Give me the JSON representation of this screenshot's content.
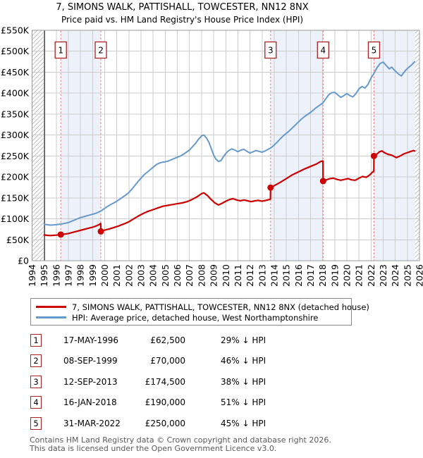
{
  "title": "7, SIMONS WALK, PATTISHALL, TOWCESTER, NN12 8NX",
  "subtitle": "Price paid vs. HM Land Registry's House Price Index (HPI)",
  "legend": [
    {
      "label": "7, SIMONS WALK, PATTISHALL, TOWCESTER, NN12 8NX (detached house)",
      "color": "#cc0000"
    },
    {
      "label": "HPI: Average price, detached house, West Northamptonshire",
      "color": "#6699cc"
    }
  ],
  "sales": [
    {
      "num": "1",
      "date": "17-MAY-1996",
      "price": "£62,500",
      "vs_hpi": "29% ↓ HPI"
    },
    {
      "num": "2",
      "date": "08-SEP-1999",
      "price": "£70,000",
      "vs_hpi": "46% ↓ HPI"
    },
    {
      "num": "3",
      "date": "12-SEP-2013",
      "price": "£174,500",
      "vs_hpi": "38% ↓ HPI"
    },
    {
      "num": "4",
      "date": "16-JAN-2018",
      "price": "£190,000",
      "vs_hpi": "51% ↓ HPI"
    },
    {
      "num": "5",
      "date": "31-MAR-2022",
      "price": "£250,000",
      "vs_hpi": "45% ↓ HPI"
    }
  ],
  "footer_line1": "Contains HM Land Registry data © Crown copyright and database right 2026.",
  "footer_line2": "This data is licensed under the Open Government Licence v3.0.",
  "colors": {
    "price": "#cc0000",
    "hpi": "#6699cc",
    "dashed": "#ee7777",
    "flag_border": "#aa2222",
    "band": "#edf2fa",
    "grid": "#cccccc",
    "frame": "#999999",
    "hatch": "#bbbbbb",
    "data_start": "#555555"
  },
  "chart_data": {
    "type": "line",
    "title": "Price paid vs. HM Land Registry's House Price Index (HPI)",
    "xlim": [
      1994,
      2026
    ],
    "ylim_k": [
      0,
      550
    ],
    "x_ticks": [
      1994,
      1995,
      1996,
      1997,
      1998,
      1999,
      2000,
      2001,
      2002,
      2003,
      2004,
      2005,
      2006,
      2007,
      2008,
      2009,
      2010,
      2011,
      2012,
      2013,
      2014,
      2015,
      2016,
      2017,
      2018,
      2019,
      2020,
      2021,
      2022,
      2023,
      2024,
      2025,
      2026
    ],
    "y_ticks": [
      [
        0,
        "£0"
      ],
      [
        50,
        "£50K"
      ],
      [
        100,
        "£100K"
      ],
      [
        150,
        "£150K"
      ],
      [
        200,
        "£200K"
      ],
      [
        250,
        "£250K"
      ],
      [
        300,
        "£300K"
      ],
      [
        350,
        "£350K"
      ],
      [
        400,
        "£400K"
      ],
      [
        450,
        "£450K"
      ],
      [
        500,
        "£500K"
      ],
      [
        550,
        "£550K"
      ]
    ],
    "shaded_bands": [
      [
        1996.37,
        1999.68
      ],
      [
        2013.7,
        2018.04
      ],
      [
        2022.24,
        2025.63
      ]
    ],
    "hatch_bands": [
      [
        1994,
        1995.03
      ],
      [
        2025.63,
        2026
      ]
    ],
    "data_start_line": 1995.03,
    "sale_markers": [
      {
        "num": "1",
        "year": 1996.37,
        "price_k": 62.5
      },
      {
        "num": "2",
        "year": 1999.68,
        "price_k": 70
      },
      {
        "num": "3",
        "year": 2013.7,
        "price_k": 174.5
      },
      {
        "num": "4",
        "year": 2018.04,
        "price_k": 190
      },
      {
        "num": "5",
        "year": 2022.24,
        "price_k": 250
      }
    ],
    "series": [
      {
        "name": "HPI: Average price, detached house, West Northamptonshire",
        "points": [
          [
            1995.0,
            87
          ],
          [
            1995.25,
            86
          ],
          [
            1995.5,
            85
          ],
          [
            1995.75,
            85.5
          ],
          [
            1996.0,
            86
          ],
          [
            1996.25,
            87
          ],
          [
            1996.5,
            88
          ],
          [
            1996.75,
            89.5
          ],
          [
            1997.0,
            91
          ],
          [
            1997.25,
            94
          ],
          [
            1997.5,
            97
          ],
          [
            1997.75,
            100
          ],
          [
            1998.0,
            103
          ],
          [
            1998.25,
            105
          ],
          [
            1998.5,
            107
          ],
          [
            1998.75,
            109
          ],
          [
            1999.0,
            111
          ],
          [
            1999.25,
            113
          ],
          [
            1999.5,
            116
          ],
          [
            1999.75,
            120
          ],
          [
            2000.0,
            125
          ],
          [
            2000.25,
            130
          ],
          [
            2000.5,
            134
          ],
          [
            2000.75,
            138
          ],
          [
            2001.0,
            142
          ],
          [
            2001.25,
            147
          ],
          [
            2001.5,
            152
          ],
          [
            2001.75,
            157
          ],
          [
            2002.0,
            163
          ],
          [
            2002.25,
            171
          ],
          [
            2002.5,
            180
          ],
          [
            2002.75,
            189
          ],
          [
            2003.0,
            197
          ],
          [
            2003.25,
            205
          ],
          [
            2003.5,
            211
          ],
          [
            2003.75,
            217
          ],
          [
            2004.0,
            223
          ],
          [
            2004.25,
            229
          ],
          [
            2004.5,
            233
          ],
          [
            2004.75,
            235
          ],
          [
            2005.0,
            236
          ],
          [
            2005.25,
            238
          ],
          [
            2005.5,
            241
          ],
          [
            2005.75,
            244
          ],
          [
            2006.0,
            247
          ],
          [
            2006.25,
            250
          ],
          [
            2006.5,
            254
          ],
          [
            2006.75,
            259
          ],
          [
            2007.0,
            264
          ],
          [
            2007.25,
            272
          ],
          [
            2007.5,
            280
          ],
          [
            2007.75,
            290
          ],
          [
            2008.0,
            298
          ],
          [
            2008.2,
            300
          ],
          [
            2008.4,
            293
          ],
          [
            2008.6,
            283
          ],
          [
            2008.8,
            268
          ],
          [
            2009.0,
            252
          ],
          [
            2009.2,
            242
          ],
          [
            2009.4,
            237
          ],
          [
            2009.6,
            239
          ],
          [
            2009.8,
            248
          ],
          [
            2010.0,
            256
          ],
          [
            2010.25,
            263
          ],
          [
            2010.5,
            267
          ],
          [
            2010.75,
            264
          ],
          [
            2011.0,
            260
          ],
          [
            2011.25,
            264
          ],
          [
            2011.5,
            266
          ],
          [
            2011.75,
            261
          ],
          [
            2012.0,
            257
          ],
          [
            2012.25,
            260
          ],
          [
            2012.5,
            263
          ],
          [
            2012.75,
            261
          ],
          [
            2013.0,
            259
          ],
          [
            2013.25,
            262
          ],
          [
            2013.5,
            266
          ],
          [
            2013.75,
            270
          ],
          [
            2014.0,
            276
          ],
          [
            2014.25,
            283
          ],
          [
            2014.5,
            291
          ],
          [
            2014.75,
            298
          ],
          [
            2015.0,
            304
          ],
          [
            2015.25,
            310
          ],
          [
            2015.5,
            317
          ],
          [
            2015.75,
            324
          ],
          [
            2016.0,
            331
          ],
          [
            2016.25,
            338
          ],
          [
            2016.5,
            344
          ],
          [
            2016.75,
            349
          ],
          [
            2017.0,
            354
          ],
          [
            2017.25,
            360
          ],
          [
            2017.5,
            366
          ],
          [
            2017.75,
            371
          ],
          [
            2018.0,
            376
          ],
          [
            2018.25,
            386
          ],
          [
            2018.5,
            396
          ],
          [
            2018.75,
            401
          ],
          [
            2019.0,
            402
          ],
          [
            2019.25,
            396
          ],
          [
            2019.5,
            390
          ],
          [
            2019.75,
            394
          ],
          [
            2020.0,
            399
          ],
          [
            2020.25,
            394
          ],
          [
            2020.5,
            391
          ],
          [
            2020.75,
            399
          ],
          [
            2021.0,
            410
          ],
          [
            2021.25,
            416
          ],
          [
            2021.5,
            412
          ],
          [
            2021.75,
            421
          ],
          [
            2022.0,
            436
          ],
          [
            2022.25,
            448
          ],
          [
            2022.5,
            461
          ],
          [
            2022.75,
            471
          ],
          [
            2023.0,
            474
          ],
          [
            2023.25,
            466
          ],
          [
            2023.5,
            458
          ],
          [
            2023.7,
            462
          ],
          [
            2023.9,
            456
          ],
          [
            2024.1,
            450
          ],
          [
            2024.3,
            445
          ],
          [
            2024.5,
            441
          ],
          [
            2024.7,
            449
          ],
          [
            2024.9,
            456
          ],
          [
            2025.1,
            461
          ],
          [
            2025.3,
            466
          ],
          [
            2025.5,
            472
          ],
          [
            2025.6,
            475
          ]
        ]
      },
      {
        "name": "7, SIMONS WALK, PATTISHALL, TOWCESTER, NN12 8NX (detached house)",
        "points": [
          [
            1995.0,
            61.5
          ],
          [
            1995.25,
            60.5
          ],
          [
            1995.5,
            60
          ],
          [
            1995.75,
            60.5
          ],
          [
            1996.0,
            61
          ],
          [
            1996.2,
            61.8
          ],
          [
            1996.37,
            62.5
          ],
          [
            1996.6,
            63
          ],
          [
            1997.0,
            65
          ],
          [
            1997.4,
            68
          ],
          [
            1997.8,
            71
          ],
          [
            1998.2,
            74
          ],
          [
            1998.6,
            77
          ],
          [
            1999.0,
            80
          ],
          [
            1999.3,
            83
          ],
          [
            1999.55,
            86.5
          ],
          [
            1999.67,
            89
          ],
          [
            1999.68,
            70
          ],
          [
            2000.0,
            73
          ],
          [
            2000.4,
            76
          ],
          [
            2000.8,
            79.5
          ],
          [
            2001.2,
            83.5
          ],
          [
            2001.6,
            88
          ],
          [
            2002.0,
            93
          ],
          [
            2002.4,
            100
          ],
          [
            2002.8,
            107
          ],
          [
            2003.2,
            113
          ],
          [
            2003.6,
            118
          ],
          [
            2004.0,
            122
          ],
          [
            2004.4,
            126
          ],
          [
            2004.8,
            130
          ],
          [
            2005.2,
            132
          ],
          [
            2005.6,
            134
          ],
          [
            2006.0,
            136
          ],
          [
            2006.4,
            138
          ],
          [
            2006.8,
            141
          ],
          [
            2007.2,
            146
          ],
          [
            2007.6,
            152
          ],
          [
            2008.0,
            160
          ],
          [
            2008.2,
            162
          ],
          [
            2008.5,
            155
          ],
          [
            2008.8,
            146
          ],
          [
            2009.1,
            138
          ],
          [
            2009.4,
            133
          ],
          [
            2009.7,
            137
          ],
          [
            2010.0,
            142
          ],
          [
            2010.3,
            146
          ],
          [
            2010.6,
            148
          ],
          [
            2010.9,
            145
          ],
          [
            2011.2,
            143
          ],
          [
            2011.5,
            145
          ],
          [
            2011.8,
            143
          ],
          [
            2012.1,
            141
          ],
          [
            2012.4,
            143
          ],
          [
            2012.7,
            144
          ],
          [
            2013.0,
            142
          ],
          [
            2013.3,
            144
          ],
          [
            2013.6,
            146
          ],
          [
            2013.69,
            147
          ],
          [
            2013.7,
            174.5
          ],
          [
            2014.0,
            179
          ],
          [
            2014.5,
            187
          ],
          [
            2015.0,
            196
          ],
          [
            2015.5,
            205
          ],
          [
            2016.0,
            212
          ],
          [
            2016.5,
            219
          ],
          [
            2017.0,
            225
          ],
          [
            2017.5,
            231
          ],
          [
            2017.85,
            237
          ],
          [
            2018.03,
            238
          ],
          [
            2018.04,
            190
          ],
          [
            2018.3,
            193
          ],
          [
            2018.6,
            196
          ],
          [
            2018.9,
            197
          ],
          [
            2019.2,
            194
          ],
          [
            2019.5,
            192
          ],
          [
            2019.8,
            194
          ],
          [
            2020.1,
            196
          ],
          [
            2020.4,
            193
          ],
          [
            2020.7,
            192
          ],
          [
            2021.0,
            197
          ],
          [
            2021.3,
            201
          ],
          [
            2021.6,
            199
          ],
          [
            2021.9,
            205
          ],
          [
            2022.1,
            211
          ],
          [
            2022.23,
            214
          ],
          [
            2022.24,
            250
          ],
          [
            2022.5,
            255
          ],
          [
            2022.7,
            260
          ],
          [
            2022.9,
            262
          ],
          [
            2023.1,
            258
          ],
          [
            2023.4,
            254
          ],
          [
            2023.7,
            252
          ],
          [
            2023.9,
            249
          ],
          [
            2024.1,
            246
          ],
          [
            2024.4,
            250
          ],
          [
            2024.7,
            255
          ],
          [
            2025.0,
            258
          ],
          [
            2025.3,
            261
          ],
          [
            2025.5,
            263
          ],
          [
            2025.6,
            262
          ]
        ]
      }
    ]
  }
}
